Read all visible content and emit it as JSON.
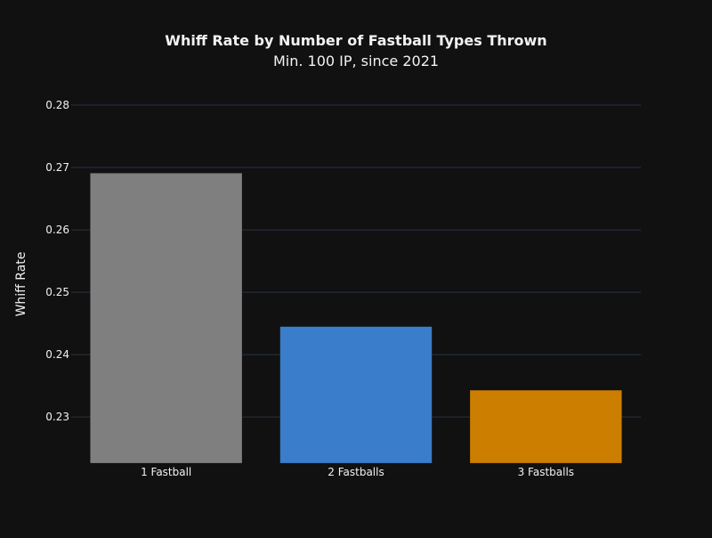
{
  "chart_data": {
    "type": "bar",
    "title": "Whiff Rate by Number of Fastball Types Thrown",
    "subtitle": "Min. 100 IP, since 2021",
    "xlabel": "",
    "ylabel": "Whiff Rate",
    "categories": [
      "1 Fastball",
      "2 Fastballs",
      "3 Fastballs"
    ],
    "values": [
      0.2691,
      0.2445,
      0.2343
    ],
    "colors": [
      "#7f7f7f",
      "#3a7dcb",
      "#cc7e00"
    ],
    "ylim": [
      0.2226,
      0.28
    ],
    "yticks": [
      0.23,
      0.24,
      0.25,
      0.26,
      0.27,
      0.28
    ],
    "ytick_labels": [
      "0.23",
      "0.24",
      "0.25",
      "0.26",
      "0.27",
      "0.28"
    ],
    "grid": true,
    "legend": "none"
  }
}
